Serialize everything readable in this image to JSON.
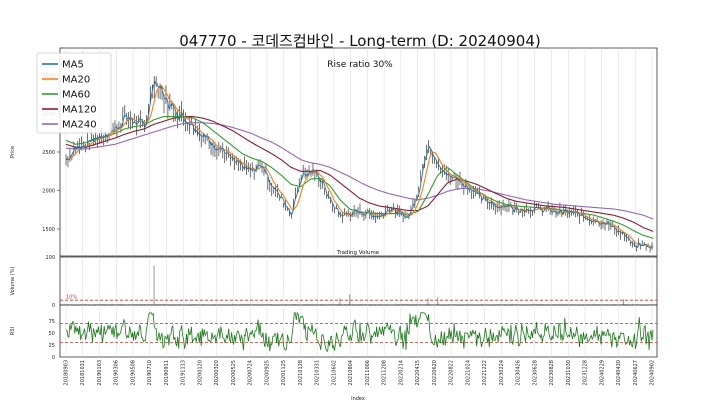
{
  "chart_data": {
    "type": "line",
    "title": "047770 - 코데즈컴바인 - Long-term (D: 20240904)",
    "annotation": "Rise ratio 30%",
    "price_panel": {
      "ylabel": "Price",
      "ylim": [
        1150,
        3850
      ],
      "yticks": [
        1500,
        2000,
        2500,
        3000,
        3500
      ],
      "legend_position": "top-left",
      "series": [
        {
          "name": "MA5",
          "color": "#1f77b4"
        },
        {
          "name": "MA20",
          "color": "#ff7f0e"
        },
        {
          "name": "MA60",
          "color": "#2ca02c"
        },
        {
          "name": "MA120",
          "color": "#8c1c2c"
        },
        {
          "name": "MA240",
          "color": "#9467bd"
        }
      ],
      "price": [
        2400,
        2560,
        2600,
        2680,
        2720,
        2800,
        2950,
        2900,
        2820,
        3450,
        3200,
        3050,
        2950,
        2850,
        2700,
        2600,
        2520,
        2380,
        2300,
        2250,
        2350,
        2050,
        1900,
        1700,
        2200,
        2250,
        2150,
        1850,
        1680,
        1700,
        1720,
        1700,
        1660,
        1780,
        1700,
        1660,
        2000,
        2650,
        2300,
        2200,
        2150,
        2050,
        1950,
        1850,
        1800,
        1800,
        1760,
        1760,
        1760,
        1760,
        1720,
        1720,
        1700,
        1660,
        1620,
        1580,
        1520,
        1420,
        1270,
        1300,
        1250
      ],
      "ma60": [
        2650,
        2600,
        2620,
        2680,
        2700,
        2740,
        2800,
        2830,
        2850,
        2920,
        2960,
        2960,
        2960,
        2940,
        2880,
        2780,
        2680,
        2580,
        2480,
        2420,
        2380,
        2300,
        2200,
        2080,
        2050,
        2150,
        2160,
        2060,
        1880,
        1760,
        1720,
        1710,
        1700,
        1700,
        1700,
        1690,
        1730,
        1950,
        2200,
        2300,
        2200,
        2100,
        2000,
        1920,
        1860,
        1820,
        1800,
        1790,
        1780,
        1770,
        1760,
        1740,
        1720,
        1700,
        1680,
        1640,
        1600,
        1550,
        1480,
        1420,
        1380
      ],
      "ma120": [
        2600,
        2560,
        2560,
        2600,
        2640,
        2680,
        2730,
        2770,
        2800,
        2860,
        2900,
        2940,
        2960,
        2960,
        2940,
        2900,
        2840,
        2780,
        2700,
        2620,
        2550,
        2480,
        2400,
        2300,
        2250,
        2250,
        2260,
        2200,
        2100,
        2000,
        1900,
        1840,
        1800,
        1780,
        1760,
        1740,
        1740,
        1800,
        1950,
        2100,
        2150,
        2120,
        2080,
        2020,
        1960,
        1900,
        1860,
        1840,
        1820,
        1800,
        1790,
        1780,
        1760,
        1740,
        1720,
        1700,
        1680,
        1640,
        1590,
        1520,
        1470
      ],
      "ma240": [
        2550,
        2540,
        2540,
        2560,
        2580,
        2600,
        2640,
        2680,
        2720,
        2760,
        2800,
        2840,
        2870,
        2880,
        2880,
        2870,
        2850,
        2820,
        2780,
        2740,
        2680,
        2630,
        2560,
        2480,
        2400,
        2360,
        2340,
        2300,
        2240,
        2180,
        2110,
        2050,
        2000,
        1960,
        1930,
        1900,
        1880,
        1900,
        1940,
        1990,
        2020,
        2030,
        2020,
        2000,
        1970,
        1940,
        1910,
        1880,
        1860,
        1840,
        1820,
        1810,
        1800,
        1790,
        1780,
        1770,
        1760,
        1740,
        1710,
        1680,
        1630
      ]
    },
    "volume_panel": {
      "label": "Trading Volume",
      "ylabel": "Volume (%)",
      "ylim": [
        0,
        100
      ],
      "yticks": [
        0,
        100
      ],
      "threshold_label": "10%",
      "threshold": 10,
      "spikes": [
        {
          "index": 9,
          "value": 82
        },
        {
          "index": 28,
          "value": 14
        },
        {
          "index": 29,
          "value": 22
        },
        {
          "index": 37,
          "value": 14
        },
        {
          "index": 38,
          "value": 16
        },
        {
          "index": 57,
          "value": 12
        }
      ]
    },
    "rsi_panel": {
      "ylabel": "RSI",
      "ylim": [
        0,
        100
      ],
      "yticks": [
        0,
        25,
        50,
        75
      ],
      "reference_lines": [
        30,
        70
      ],
      "color": "#1a7a1a"
    },
    "xaxis": {
      "xlabel": "Index",
      "tick_labels": [
        "20180903",
        "20181031",
        "20190103",
        "20190306",
        "20190508",
        "20190710",
        "20190911",
        "20191113",
        "20200120",
        "20200320",
        "20200525",
        "20200724",
        "20200925",
        "20201125",
        "20210128",
        "20210331",
        "20210602",
        "20210804",
        "20211006",
        "20211208",
        "20220214",
        "20220415",
        "20220620",
        "20220822",
        "20221024",
        "20221222",
        "20230224",
        "20230426",
        "20230628",
        "20230828",
        "20231030",
        "20231228",
        "20240229",
        "20240430",
        "20240627",
        "20240902"
      ]
    }
  }
}
